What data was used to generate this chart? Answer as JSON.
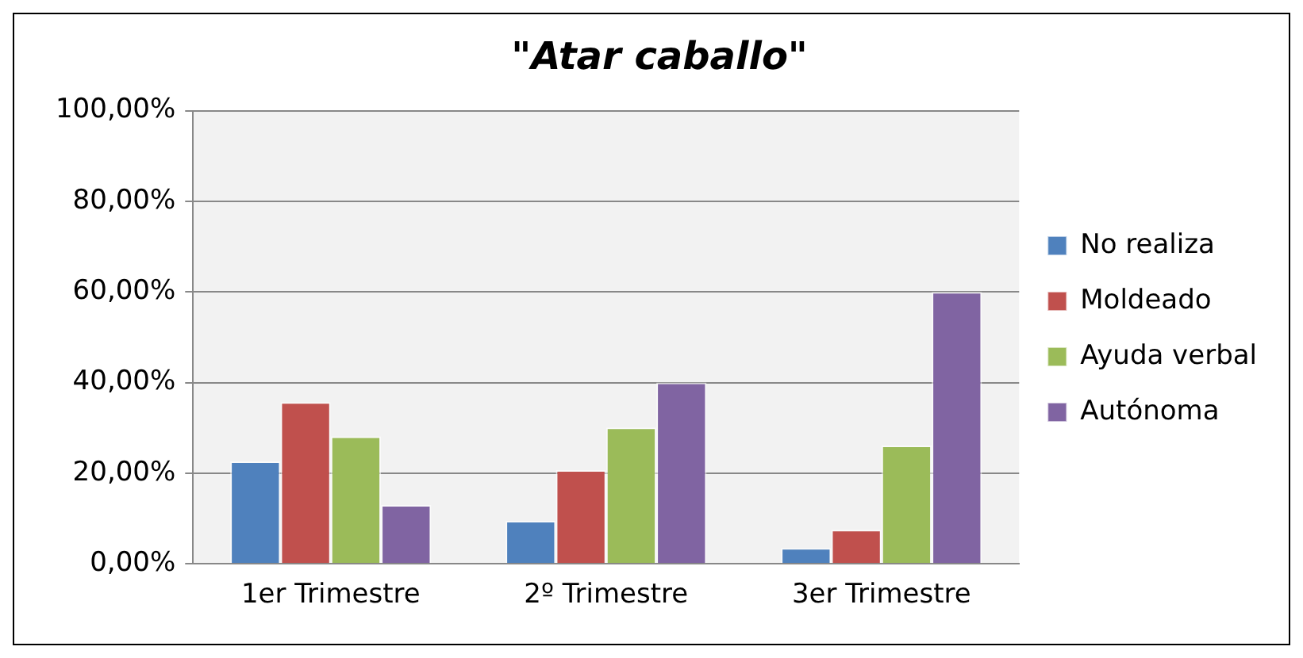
{
  "chart_data": {
    "type": "bar",
    "title": "\"Atar caballo\"",
    "categories": [
      "1er Trimestre",
      "2º Trimestre",
      "3er Trimestre"
    ],
    "series": [
      {
        "name": "No realiza",
        "color": "#4f81bd",
        "values": [
          22.6,
          9.5,
          3.5
        ]
      },
      {
        "name": "Moldeado",
        "color": "#c0504d",
        "values": [
          35.7,
          20.7,
          7.5
        ]
      },
      {
        "name": "Ayuda verbal",
        "color": "#9bbb59",
        "values": [
          28.1,
          30.1,
          26.1
        ]
      },
      {
        "name": "Autónoma",
        "color": "#8064a2",
        "values": [
          13,
          40,
          60
        ]
      }
    ],
    "ylim": [
      0,
      100
    ],
    "yticks": [
      {
        "value": 0,
        "label": "0,00%"
      },
      {
        "value": 20,
        "label": "20,00%"
      },
      {
        "value": 40,
        "label": "40,00%"
      },
      {
        "value": 60,
        "label": "60,00%"
      },
      {
        "value": 80,
        "label": "80,00%"
      },
      {
        "value": 100,
        "label": "100,00%"
      }
    ],
    "grid": "y",
    "legend": "right"
  }
}
